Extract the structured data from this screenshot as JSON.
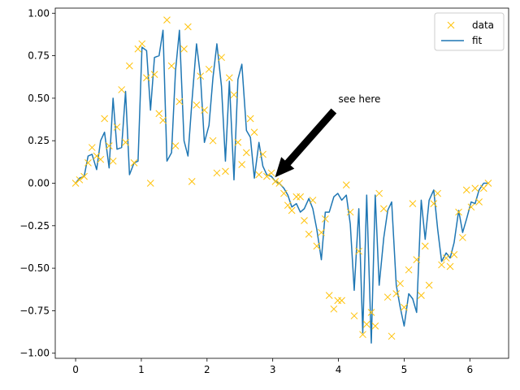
{
  "chart_data": {
    "type": "line",
    "xlim": [
      -0.31,
      6.59
    ],
    "ylim": [
      -1.03,
      1.03
    ],
    "xticks": [
      0,
      1,
      2,
      3,
      4,
      5,
      6
    ],
    "yticks": [
      -1.0,
      -0.75,
      -0.5,
      -0.25,
      0.0,
      0.25,
      0.5,
      0.75,
      1.0
    ],
    "xtick_labels": [
      "0",
      "1",
      "2",
      "3",
      "4",
      "5",
      "6"
    ],
    "ytick_labels": [
      "−1.00",
      "−0.75",
      "−0.50",
      "−0.25",
      "0.00",
      "0.25",
      "0.50",
      "0.75",
      "1.00"
    ],
    "grid": false,
    "legend": {
      "placement": "top-right",
      "entries": [
        "data",
        "fit"
      ]
    },
    "colors": {
      "data": "#ffc20a",
      "fit": "#1f77b4",
      "arrow": "#000000"
    },
    "series": [
      {
        "name": "data",
        "kind": "scatter",
        "marker": "x",
        "x": [
          0.0,
          0.06,
          0.13,
          0.19,
          0.25,
          0.32,
          0.38,
          0.44,
          0.51,
          0.57,
          0.63,
          0.7,
          0.76,
          0.82,
          0.89,
          0.95,
          1.01,
          1.08,
          1.14,
          1.2,
          1.27,
          1.33,
          1.39,
          1.46,
          1.52,
          1.58,
          1.65,
          1.71,
          1.77,
          1.84,
          1.9,
          1.96,
          2.03,
          2.09,
          2.15,
          2.22,
          2.28,
          2.34,
          2.41,
          2.47,
          2.53,
          2.6,
          2.66,
          2.72,
          2.79,
          2.85,
          2.91,
          2.98,
          3.04,
          3.1,
          3.17,
          3.23,
          3.29,
          3.36,
          3.42,
          3.48,
          3.55,
          3.61,
          3.67,
          3.74,
          3.8,
          3.86,
          3.93,
          3.99,
          4.05,
          4.12,
          4.18,
          4.24,
          4.31,
          4.37,
          4.43,
          4.5,
          4.56,
          4.62,
          4.69,
          4.75,
          4.81,
          4.88,
          4.94,
          5.0,
          5.07,
          5.13,
          5.19,
          5.26,
          5.32,
          5.38,
          5.45,
          5.51,
          5.57,
          5.64,
          5.7,
          5.76,
          5.83,
          5.89,
          5.95,
          6.02,
          6.08,
          6.14,
          6.21,
          6.28
        ],
        "y": [
          0.0,
          0.02,
          0.04,
          0.12,
          0.21,
          0.16,
          0.14,
          0.38,
          0.22,
          0.13,
          0.33,
          0.55,
          0.24,
          0.69,
          0.12,
          0.79,
          0.82,
          0.62,
          0.0,
          0.64,
          0.41,
          0.37,
          0.96,
          0.69,
          0.22,
          0.48,
          0.79,
          0.92,
          0.01,
          0.46,
          0.63,
          0.43,
          0.67,
          0.25,
          0.06,
          0.74,
          0.07,
          0.62,
          0.52,
          0.24,
          0.11,
          0.18,
          0.38,
          0.3,
          0.05,
          0.17,
          0.04,
          0.06,
          0.01,
          0.0,
          -0.06,
          -0.13,
          -0.16,
          -0.08,
          -0.08,
          -0.22,
          -0.3,
          -0.1,
          -0.37,
          -0.29,
          -0.21,
          -0.66,
          -0.74,
          -0.69,
          -0.69,
          -0.01,
          -0.17,
          -0.78,
          -0.4,
          -0.89,
          -0.83,
          -0.76,
          -0.84,
          -0.06,
          -0.15,
          -0.67,
          -0.9,
          -0.65,
          -0.59,
          -0.73,
          -0.51,
          -0.12,
          -0.45,
          -0.66,
          -0.37,
          -0.6,
          -0.12,
          -0.06,
          -0.48,
          -0.44,
          -0.49,
          -0.42,
          -0.17,
          -0.32,
          -0.04,
          -0.14,
          -0.03,
          -0.11,
          -0.03,
          0.0
        ]
      },
      {
        "name": "fit",
        "kind": "line",
        "x": [
          0.0,
          0.06,
          0.13,
          0.19,
          0.25,
          0.32,
          0.38,
          0.44,
          0.51,
          0.57,
          0.63,
          0.7,
          0.76,
          0.82,
          0.89,
          0.95,
          1.01,
          1.08,
          1.14,
          1.2,
          1.27,
          1.33,
          1.39,
          1.46,
          1.52,
          1.58,
          1.65,
          1.71,
          1.77,
          1.84,
          1.9,
          1.96,
          2.03,
          2.09,
          2.15,
          2.22,
          2.28,
          2.34,
          2.41,
          2.47,
          2.53,
          2.6,
          2.66,
          2.72,
          2.79,
          2.85,
          2.91,
          2.98,
          3.04,
          3.1,
          3.17,
          3.23,
          3.29,
          3.36,
          3.42,
          3.48,
          3.55,
          3.61,
          3.67,
          3.74,
          3.8,
          3.86,
          3.93,
          3.99,
          4.05,
          4.12,
          4.18,
          4.24,
          4.31,
          4.37,
          4.43,
          4.5,
          4.56,
          4.62,
          4.69,
          4.75,
          4.81,
          4.88,
          4.94,
          5.0,
          5.07,
          5.13,
          5.19,
          5.26,
          5.32,
          5.38,
          5.45,
          5.51,
          5.57,
          5.64,
          5.7,
          5.76,
          5.83,
          5.89,
          5.95,
          6.02,
          6.08,
          6.14,
          6.21,
          6.28
        ],
        "y": [
          0.0,
          0.03,
          0.04,
          0.16,
          0.17,
          0.08,
          0.25,
          0.3,
          0.09,
          0.5,
          0.2,
          0.21,
          0.54,
          0.05,
          0.12,
          0.13,
          0.8,
          0.78,
          0.43,
          0.74,
          0.75,
          0.9,
          0.13,
          0.18,
          0.66,
          0.9,
          0.25,
          0.16,
          0.48,
          0.82,
          0.63,
          0.24,
          0.34,
          0.62,
          0.82,
          0.57,
          0.13,
          0.6,
          0.02,
          0.61,
          0.7,
          0.31,
          0.27,
          0.03,
          0.24,
          0.1,
          0.05,
          0.04,
          0.01,
          0.0,
          -0.03,
          -0.07,
          -0.14,
          -0.12,
          -0.17,
          -0.15,
          -0.09,
          -0.15,
          -0.27,
          -0.45,
          -0.17,
          -0.17,
          -0.08,
          -0.06,
          -0.1,
          -0.07,
          -0.24,
          -0.63,
          -0.15,
          -0.88,
          -0.07,
          -0.94,
          -0.07,
          -0.6,
          -0.32,
          -0.16,
          -0.11,
          -0.6,
          -0.73,
          -0.84,
          -0.65,
          -0.68,
          -0.76,
          -0.1,
          -0.33,
          -0.1,
          -0.04,
          -0.27,
          -0.46,
          -0.41,
          -0.44,
          -0.35,
          -0.16,
          -0.29,
          -0.21,
          -0.11,
          -0.12,
          -0.04,
          0.0,
          0.0
        ]
      }
    ],
    "annotations": [
      {
        "text": "see here",
        "text_xy": [
          4.0,
          0.5
        ],
        "arrow_to": [
          3.02,
          0.02
        ]
      }
    ]
  }
}
